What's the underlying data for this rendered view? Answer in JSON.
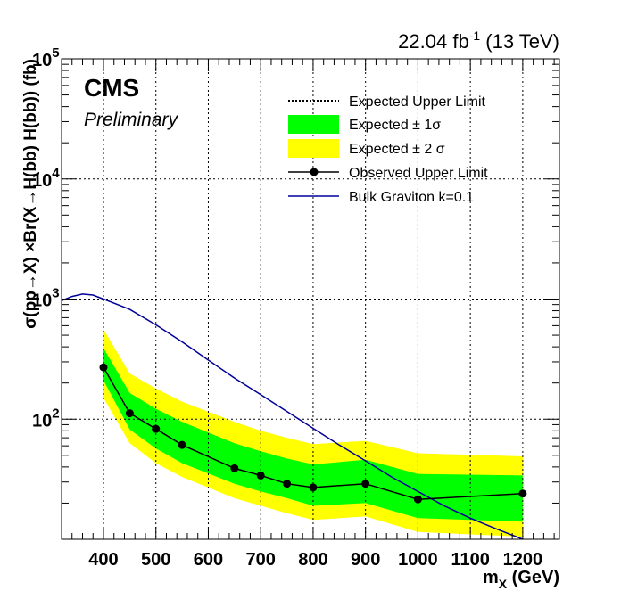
{
  "header": {
    "lumi": "22.04 fb",
    "lumi_exp": "-1",
    "energy": " (13 TeV)"
  },
  "cms_label": "CMS",
  "preliminary_label": "Preliminary",
  "chart_data": {
    "type": "line",
    "title": "",
    "xlabel_main": "m",
    "xlabel_sub": "X",
    "xlabel_unit": " (GeV)",
    "ylabel": "σ(pp→X) ×Br(X→H(bb) H(bb)) (fb)",
    "x_range": [
      320,
      1270
    ],
    "y_range": [
      10,
      100000
    ],
    "y_scale": "log",
    "grid": true,
    "legend_position": "top-right",
    "x_ticks": [
      400,
      500,
      600,
      700,
      800,
      900,
      1000,
      1100,
      1200
    ],
    "y_ticks": [
      {
        "value": 100,
        "base": "10",
        "exp": "2"
      },
      {
        "value": 1000,
        "base": "10",
        "exp": "3"
      },
      {
        "value": 10000,
        "base": "10",
        "exp": "4"
      },
      {
        "value": 100000,
        "base": "10",
        "exp": "5"
      }
    ],
    "mass_points": [
      400,
      450,
      500,
      550,
      650,
      700,
      750,
      800,
      900,
      1000,
      1200
    ],
    "observed": [
      270,
      112,
      83,
      61,
      39,
      34,
      29,
      27,
      29,
      21.5,
      24
    ],
    "expected_band_1sigma": {
      "lower": [
        210,
        82,
        57,
        43,
        29,
        25,
        22,
        19,
        20,
        15,
        14
      ],
      "upper": [
        390,
        165,
        122,
        95,
        63,
        54,
        47,
        42,
        46,
        35,
        34
      ]
    },
    "expected_band_2sigma": {
      "lower": [
        150,
        63,
        43,
        33,
        22,
        19,
        16.5,
        14.5,
        15.5,
        11.5,
        10.5
      ],
      "upper": [
        560,
        240,
        180,
        140,
        95,
        80,
        70,
        62,
        66,
        52,
        49
      ]
    },
    "graviton": {
      "x": [
        320,
        340,
        360,
        380,
        400,
        450,
        500,
        550,
        600,
        650,
        700,
        750,
        800,
        850,
        900,
        950,
        1000,
        1050,
        1100,
        1150,
        1200,
        1250,
        1270
      ],
      "y": [
        970,
        1050,
        1100,
        1080,
        1000,
        820,
        610,
        440,
        310,
        220,
        160,
        116,
        84,
        61,
        45,
        33,
        25,
        19,
        15,
        12.2,
        10.0,
        8.3,
        7.8
      ]
    },
    "colors": {
      "band_1sigma": "#00ff00",
      "band_2sigma": "#ffff00",
      "observed": "#000000",
      "graviton": "#000099"
    },
    "legend": [
      {
        "label": "Expected Upper Limit",
        "style": "dotted"
      },
      {
        "label": "Expected ± 1σ",
        "style": "fill-green"
      },
      {
        "label": "Expected ± 2 σ",
        "style": "fill-yellow"
      },
      {
        "label": "Observed Upper Limit",
        "style": "marker-line"
      },
      {
        "label": "Bulk Graviton k=0.1",
        "style": "blue-line"
      }
    ]
  }
}
